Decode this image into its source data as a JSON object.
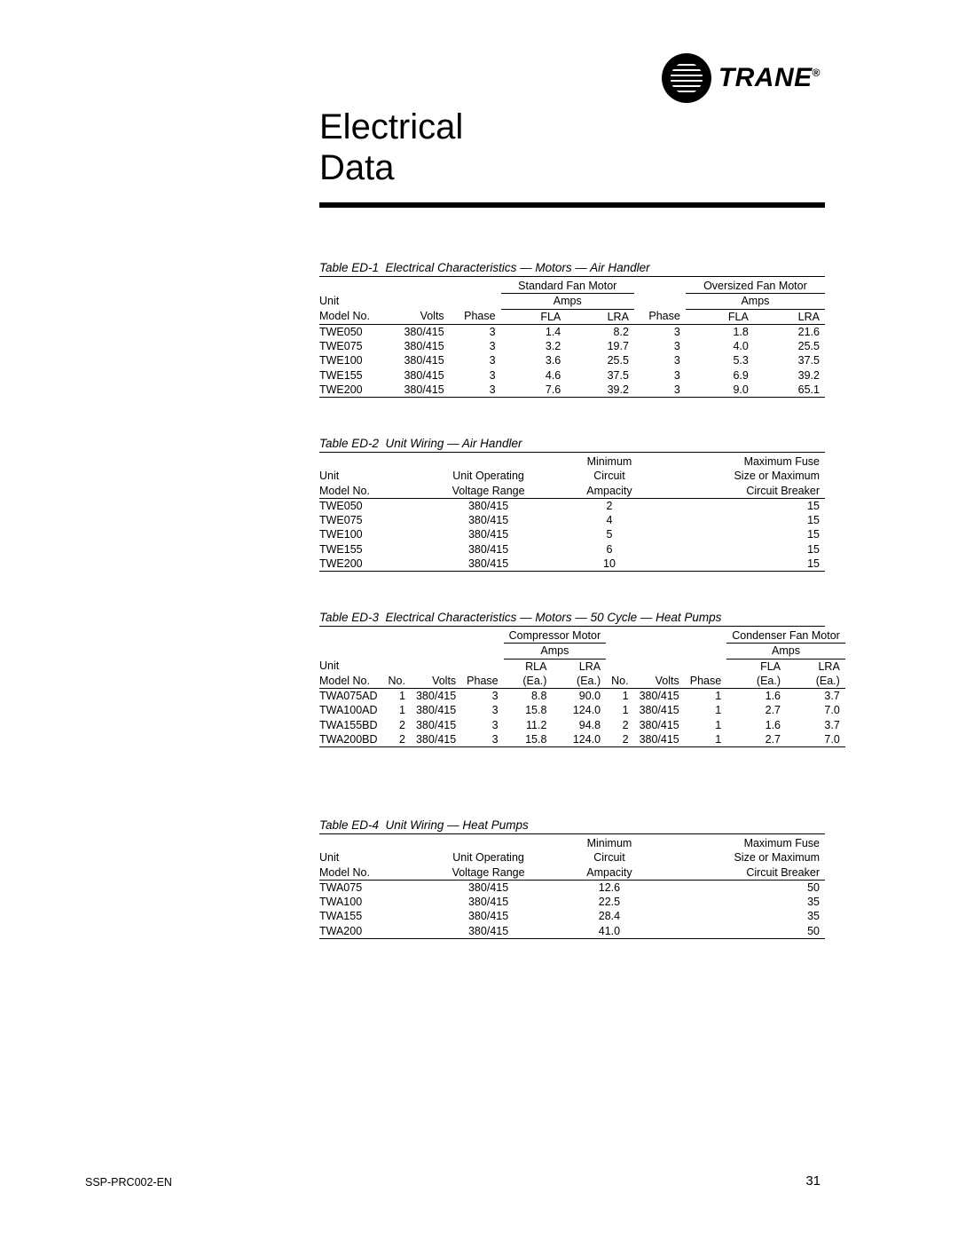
{
  "brand": {
    "name": "TRANE",
    "tm": "®"
  },
  "title": {
    "line1": "Electrical",
    "line2": "Data"
  },
  "footer": {
    "doc": "SSP-PRC002-EN",
    "page": "31"
  },
  "table1": {
    "caption": "Table ED-1  Electrical Characteristics — Motors — Air Handler",
    "groups": [
      "Standard Fan Motor",
      "Oversized Fan Motor"
    ],
    "amps": "Amps",
    "h2": [
      "Unit"
    ],
    "cols": [
      "Model No.",
      "Volts",
      "Phase",
      "FLA",
      "LRA",
      "Phase",
      "FLA",
      "LRA"
    ],
    "rows": [
      [
        "TWE050",
        "380/415",
        "3",
        "1.4",
        "8.2",
        "3",
        "1.8",
        "21.6"
      ],
      [
        "TWE075",
        "380/415",
        "3",
        "3.2",
        "19.7",
        "3",
        "4.0",
        "25.5"
      ],
      [
        "TWE100",
        "380/415",
        "3",
        "3.6",
        "25.5",
        "3",
        "5.3",
        "37.5"
      ],
      [
        "TWE155",
        "380/415",
        "3",
        "4.6",
        "37.5",
        "3",
        "6.9",
        "39.2"
      ],
      [
        "TWE200",
        "380/415",
        "3",
        "7.6",
        "39.2",
        "3",
        "9.0",
        "65.1"
      ]
    ]
  },
  "table2": {
    "caption": "Table ED-2  Unit Wiring — Air Handler",
    "h1": [
      "",
      "",
      "Minimum",
      "Maximum Fuse"
    ],
    "h2": [
      "Unit",
      "Unit Operating",
      "Circuit",
      "Size or Maximum"
    ],
    "h3": [
      "Model No.",
      "Voltage Range",
      "Ampacity",
      "Circuit Breaker"
    ],
    "rows": [
      [
        "TWE050",
        "380/415",
        "2",
        "15"
      ],
      [
        "TWE075",
        "380/415",
        "4",
        "15"
      ],
      [
        "TWE100",
        "380/415",
        "5",
        "15"
      ],
      [
        "TWE155",
        "380/415",
        "6",
        "15"
      ],
      [
        "TWE200",
        "380/415",
        "10",
        "15"
      ]
    ]
  },
  "table3": {
    "caption": "Table ED-3  Electrical Characteristics — Motors — 50 Cycle — Heat Pumps",
    "groups": [
      "Compressor Motor",
      "Condenser Fan Motor"
    ],
    "amps": "Amps",
    "h3": [
      "Unit",
      "",
      "",
      "",
      "RLA",
      "LRA",
      "",
      "",
      "",
      "FLA",
      "LRA"
    ],
    "cols": [
      "Model No.",
      "No.",
      "Volts",
      "Phase",
      "(Ea.)",
      "(Ea.)",
      "No.",
      "Volts",
      "Phase",
      "(Ea.)",
      "(Ea.)"
    ],
    "rows": [
      [
        "TWA075AD",
        "1",
        "380/415",
        "3",
        "8.8",
        "90.0",
        "1",
        "380/415",
        "1",
        "1.6",
        "3.7"
      ],
      [
        "TWA100AD",
        "1",
        "380/415",
        "3",
        "15.8",
        "124.0",
        "1",
        "380/415",
        "1",
        "2.7",
        "7.0"
      ],
      [
        "TWA155BD",
        "2",
        "380/415",
        "3",
        "11.2",
        "94.8",
        "2",
        "380/415",
        "1",
        "1.6",
        "3.7"
      ],
      [
        "TWA200BD",
        "2",
        "380/415",
        "3",
        "15.8",
        "124.0",
        "2",
        "380/415",
        "1",
        "2.7",
        "7.0"
      ]
    ]
  },
  "table4": {
    "caption": "Table ED-4  Unit Wiring — Heat Pumps",
    "h1": [
      "",
      "",
      "Minimum",
      "Maximum Fuse"
    ],
    "h2": [
      "Unit",
      "Unit Operating",
      "Circuit",
      "Size or Maximum"
    ],
    "h3": [
      "Model No.",
      "Voltage Range",
      "Ampacity",
      "Circuit Breaker"
    ],
    "rows": [
      [
        "TWA075",
        "380/415",
        "12.6",
        "50"
      ],
      [
        "TWA100",
        "380/415",
        "22.5",
        "35"
      ],
      [
        "TWA155",
        "380/415",
        "28.4",
        "35"
      ],
      [
        "TWA200",
        "380/415",
        "41.0",
        "50"
      ]
    ]
  }
}
